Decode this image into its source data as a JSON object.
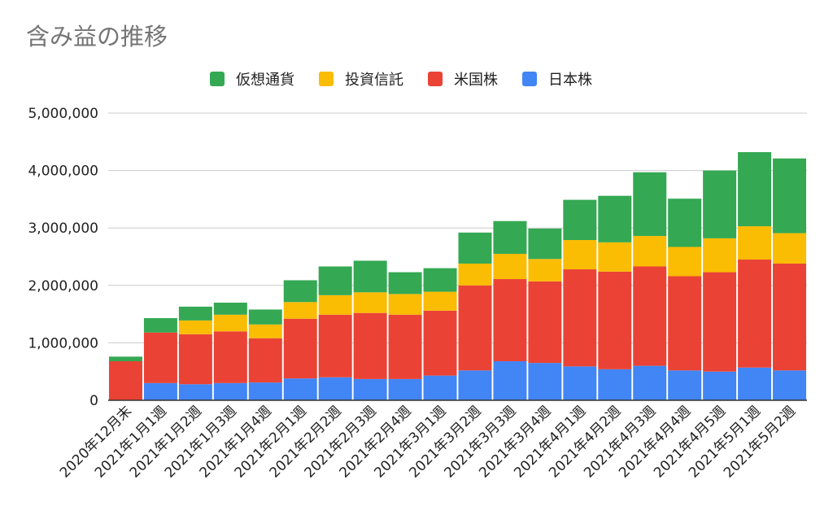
{
  "chart_data": {
    "type": "bar",
    "stacked": true,
    "title": "含み益の推移",
    "xlabel": "",
    "ylabel": "",
    "ylim": [
      0,
      5000000
    ],
    "yticks": [
      0,
      1000000,
      2000000,
      3000000,
      4000000,
      5000000
    ],
    "ytick_labels": [
      "0",
      "1,000,000",
      "2,000,000",
      "3,000,000",
      "4,000,000",
      "5,000,000"
    ],
    "grid": true,
    "legend_position": "top",
    "categories": [
      "2020年12月末",
      "2021年1月1週",
      "2021年1月2週",
      "2021年1月3週",
      "2021年1月4週",
      "2021年2月1週",
      "2021年2月2週",
      "2021年2月3週",
      "2021年2月4週",
      "2021年3月1週",
      "2021年3月2週",
      "2021年3月3週",
      "2021年3月4週",
      "2021年4月1週",
      "2021年4月2週",
      "2021年4月3週",
      "2021年4月4週",
      "2021年4月5週",
      "2021年5月1週",
      "2021年5月2週"
    ],
    "series": [
      {
        "name": "日本株",
        "color": "#4285f4",
        "values": [
          0,
          300000,
          280000,
          300000,
          310000,
          380000,
          400000,
          370000,
          370000,
          430000,
          520000,
          680000,
          650000,
          590000,
          540000,
          600000,
          520000,
          500000,
          570000,
          520000
        ]
      },
      {
        "name": "米国株",
        "color": "#ea4335",
        "values": [
          680000,
          880000,
          870000,
          900000,
          770000,
          1040000,
          1090000,
          1150000,
          1120000,
          1130000,
          1480000,
          1430000,
          1420000,
          1690000,
          1700000,
          1730000,
          1640000,
          1730000,
          1880000,
          1860000
        ]
      },
      {
        "name": "投資信託",
        "color": "#fbbc04",
        "values": [
          0,
          0,
          240000,
          290000,
          240000,
          290000,
          340000,
          360000,
          360000,
          330000,
          380000,
          440000,
          390000,
          510000,
          510000,
          530000,
          510000,
          590000,
          580000,
          530000
        ]
      },
      {
        "name": "仮想通貨",
        "color": "#34a853",
        "values": [
          80000,
          250000,
          240000,
          210000,
          260000,
          380000,
          500000,
          550000,
          380000,
          410000,
          540000,
          570000,
          530000,
          700000,
          810000,
          1110000,
          840000,
          1180000,
          1290000,
          1300000
        ]
      }
    ]
  }
}
